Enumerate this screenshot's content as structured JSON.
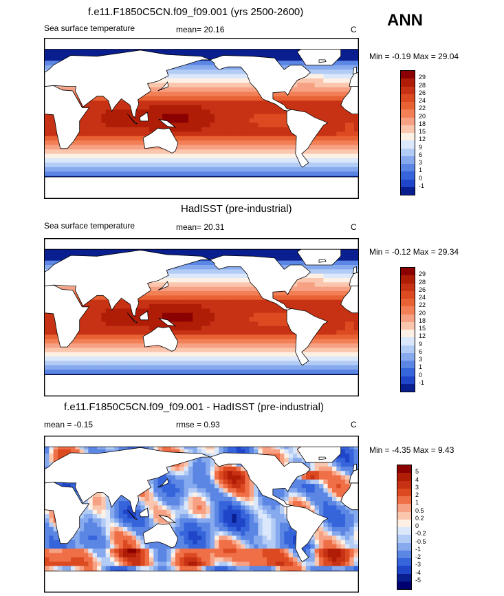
{
  "season": "ANN",
  "panels": [
    {
      "title": "f.e11.F1850C5CN.f09_f09.001 (yrs 2500-2600)",
      "var": "Sea surface temperature",
      "stat1": "mean=  20.16",
      "stat2": "",
      "units": "C",
      "minmax": "Min =  -0.19 Max =  29.04",
      "levels": [
        "29",
        "28",
        "26",
        "24",
        "22",
        "20",
        "18",
        "15",
        "12",
        "9",
        "6",
        "3",
        "1",
        "0",
        "-1"
      ],
      "colors": [
        "#8b0000",
        "#b01d07",
        "#c83214",
        "#dc4a22",
        "#e86234",
        "#f27f55",
        "#f7a184",
        "#fbc6ae",
        "#fdf0e4",
        "#dbe7fb",
        "#b3ccf5",
        "#87aaee",
        "#5b86e4",
        "#3664db",
        "#1f45c9",
        "#0a1f8f"
      ]
    },
    {
      "title": "HadISST (pre-industrial)",
      "var": "Sea surface temperature",
      "stat1": "mean=  20.31",
      "stat2": "",
      "units": "C",
      "minmax": "Min =  -0.12 Max =  29.34",
      "levels": [
        "29",
        "28",
        "26",
        "24",
        "22",
        "20",
        "18",
        "15",
        "12",
        "9",
        "6",
        "3",
        "1",
        "0",
        "-1"
      ],
      "colors": [
        "#8b0000",
        "#b01d07",
        "#c83214",
        "#dc4a22",
        "#e86234",
        "#f27f55",
        "#f7a184",
        "#fbc6ae",
        "#fdf0e4",
        "#dbe7fb",
        "#b3ccf5",
        "#87aaee",
        "#5b86e4",
        "#3664db",
        "#1f45c9",
        "#0a1f8f"
      ]
    },
    {
      "title": "f.e11.F1850C5CN.f09_f09.001 - HadISST (pre-industrial)",
      "var": "",
      "stat1": "mean =  -0.15",
      "stat2": "rmse =   0.93",
      "units": "C",
      "minmax": "Min =  -4.35 Max =   9.43",
      "levels": [
        "5",
        "4",
        "3",
        "2",
        "1",
        "0.5",
        "0.2",
        "0",
        "-0.2",
        "-0.5",
        "-1",
        "-2",
        "-3",
        "-4",
        "-5"
      ],
      "colors": [
        "#8b0000",
        "#b01d07",
        "#c83214",
        "#dc4a22",
        "#ef6f47",
        "#f7a184",
        "#fbc6ae",
        "#fdf0e4",
        "#dbe7fb",
        "#b3ccf5",
        "#87aaee",
        "#5b86e4",
        "#3664db",
        "#1f45c9",
        "#0a1f8f",
        "#000070"
      ]
    }
  ]
}
